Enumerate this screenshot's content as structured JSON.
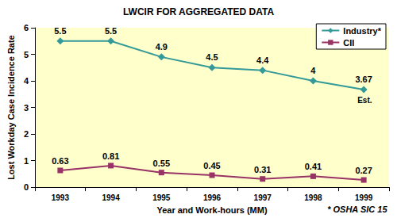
{
  "chart_data": {
    "type": "line",
    "title": "LWCIR FOR AGGREGATED DATA",
    "x_label": "Year and Work-hours (MM)",
    "y_label": "Lost Workday Case Incidence Rate",
    "categories": [
      "1993",
      "1994",
      "1995",
      "1996",
      "1997",
      "1998",
      "1999"
    ],
    "series": [
      {
        "name": "Industry*",
        "color": "#339999",
        "marker": "diamond",
        "values": [
          5.5,
          5.5,
          4.9,
          4.5,
          4.4,
          4,
          3.67
        ]
      },
      {
        "name": "CII",
        "color": "#993366",
        "marker": "square",
        "values": [
          0.63,
          0.81,
          0.55,
          0.45,
          0.31,
          0.41,
          0.27
        ]
      }
    ],
    "ylim": [
      0,
      6
    ],
    "yticks": [
      0,
      1,
      2,
      3,
      4,
      5,
      6
    ],
    "grid": false,
    "legend": "upper right",
    "data_labels": true,
    "annotations": [
      "Est.",
      "* OSHA SIC 15"
    ]
  }
}
